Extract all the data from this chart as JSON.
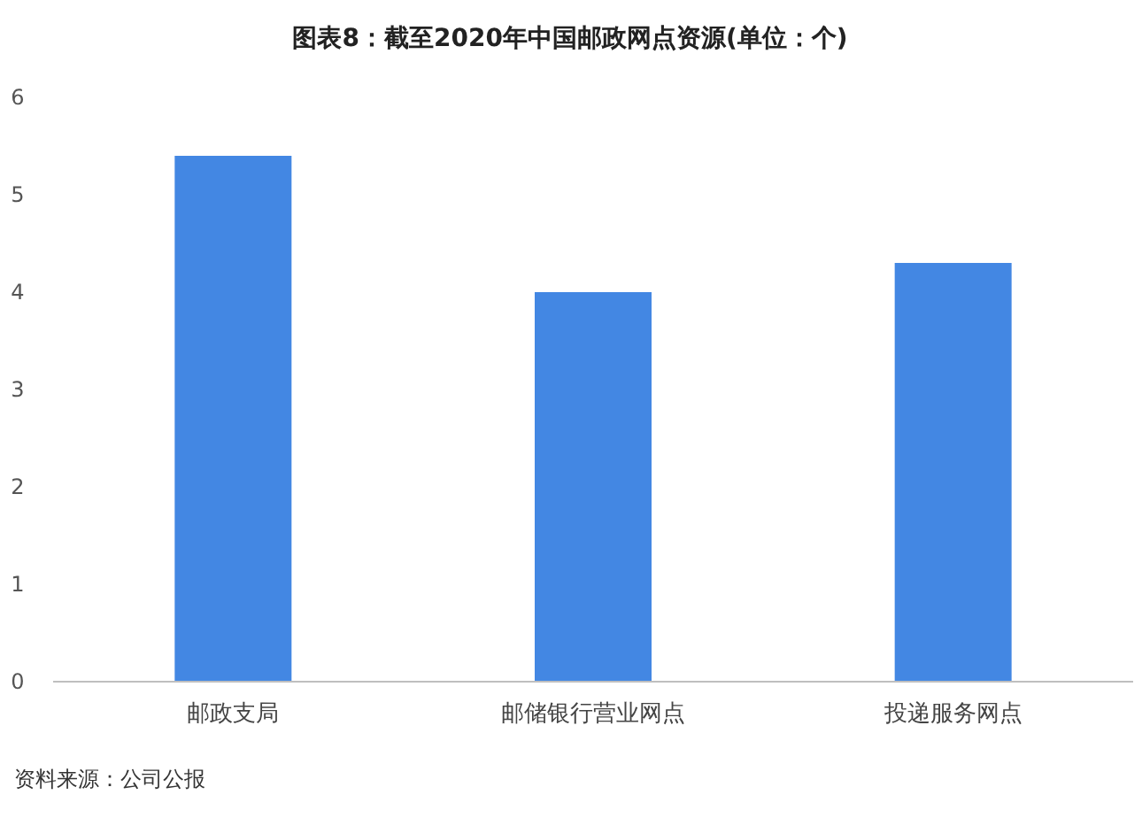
{
  "chart_data": {
    "type": "bar",
    "title": "图表8：截至2020年中国邮政网点资源(单位：个)",
    "categories": [
      "邮政支局",
      "邮储银行营业网点",
      "投递服务网点"
    ],
    "values": [
      5.4,
      4.0,
      4.3
    ],
    "color": "#4387e3",
    "ylim": [
      0,
      6
    ],
    "yticks": [
      0,
      1,
      2,
      3,
      4,
      5,
      6
    ],
    "annotations": [
      "资料来源：公司公报"
    ]
  }
}
